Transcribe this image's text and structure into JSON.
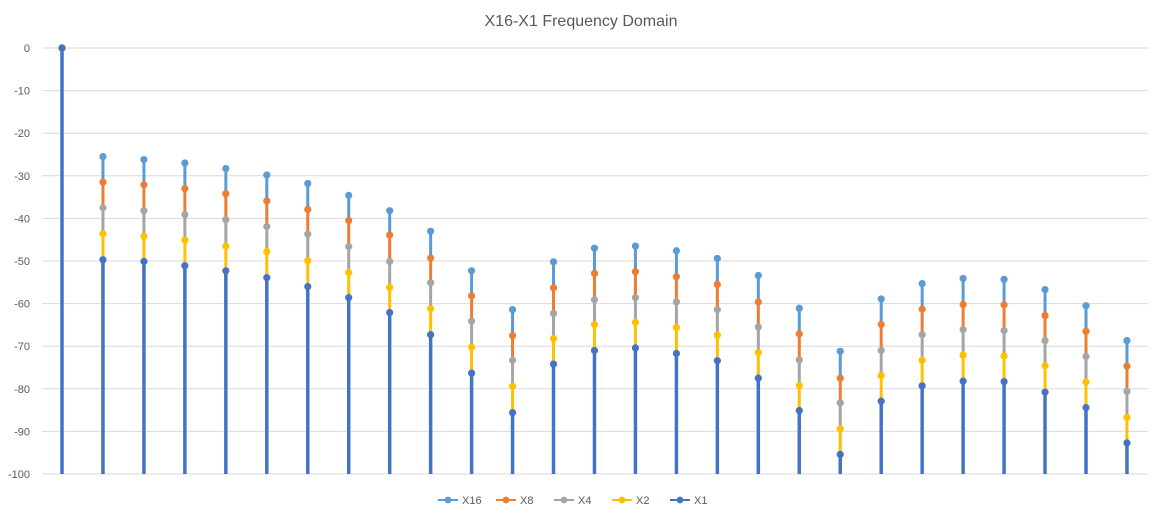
{
  "chart_data": {
    "type": "stem",
    "title": "X16-X1 Frequency Domain",
    "xlabel": "",
    "ylabel": "",
    "ylim": [
      -100,
      0
    ],
    "yticks": [
      0,
      -10,
      -20,
      -30,
      -40,
      -50,
      -60,
      -70,
      -80,
      -90,
      -100
    ],
    "grid": true,
    "legend_position": "bottom",
    "x": [
      0,
      1,
      2,
      3,
      4,
      5,
      6,
      7,
      8,
      9,
      10,
      11,
      12,
      13,
      14,
      15,
      16,
      17,
      18,
      19,
      20,
      21,
      22,
      23,
      24,
      25,
      26
    ],
    "series": [
      {
        "name": "X16",
        "color": "#5b9bd5",
        "values": [
          0,
          -25.5,
          -26.2,
          -27,
          -28.3,
          -29.8,
          -31.8,
          -34.6,
          -38.2,
          -43,
          -52.3,
          -61.4,
          -50.2,
          -47,
          -46.5,
          -47.6,
          -49.4,
          -53.4,
          -61.1,
          -71.2,
          -58.9,
          -55.3,
          -54.1,
          -54.3,
          -56.7,
          -60.5,
          -68.7
        ]
      },
      {
        "name": "X8",
        "color": "#ed7d31",
        "values": [
          0,
          -31.5,
          -32.1,
          -33,
          -34.2,
          -35.9,
          -37.9,
          -40.5,
          -43.9,
          -49.3,
          -58.2,
          -67.5,
          -56.3,
          -52.9,
          -52.5,
          -53.7,
          -55.5,
          -59.6,
          -67.1,
          -77.5,
          -64.9,
          -61.3,
          -60.2,
          -60.3,
          -62.8,
          -66.5,
          -74.7
        ]
      },
      {
        "name": "X4",
        "color": "#a5a5a5",
        "values": [
          0,
          -37.5,
          -38.2,
          -39.1,
          -40.3,
          -41.9,
          -43.7,
          -46.6,
          -50.1,
          -55.1,
          -64.1,
          -73.3,
          -62.3,
          -59.1,
          -58.6,
          -59.6,
          -61.4,
          -65.5,
          -73.2,
          -83.3,
          -71,
          -67.3,
          -66.1,
          -66.3,
          -68.7,
          -72.4,
          -80.6
        ]
      },
      {
        "name": "X2",
        "color": "#ffc000",
        "values": [
          0,
          -43.6,
          -44.2,
          -45.1,
          -46.5,
          -47.8,
          -49.9,
          -52.7,
          -56.2,
          -61.2,
          -70.2,
          -79.4,
          -68.2,
          -64.9,
          -64.4,
          -65.6,
          -67.4,
          -71.5,
          -79.2,
          -89.4,
          -76.9,
          -73.3,
          -72.1,
          -72.3,
          -74.6,
          -78.4,
          -86.7
        ]
      },
      {
        "name": "X1",
        "color": "#4472c4",
        "values": [
          0,
          -49.7,
          -50.1,
          -51.1,
          -52.3,
          -53.9,
          -56,
          -58.6,
          -62.1,
          -67.3,
          -76.3,
          -85.6,
          -74.2,
          -71,
          -70.4,
          -71.7,
          -73.4,
          -77.5,
          -85.1,
          -95.4,
          -82.9,
          -79.3,
          -78.2,
          -78.3,
          -80.8,
          -84.4,
          -92.7
        ]
      }
    ]
  }
}
